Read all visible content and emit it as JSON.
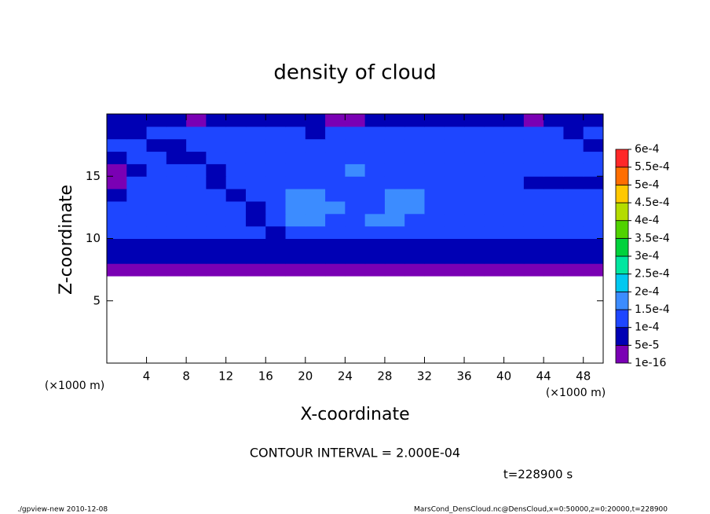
{
  "chart_data": {
    "type": "contour",
    "title": "density of cloud",
    "x_label": "X-coordinate",
    "y_label": "Z-coordinate",
    "x_unit": "(×1000 m)",
    "x_unit2": "(×1000 m)",
    "contour_interval": "CONTOUR INTERVAL = 2.000E-04",
    "time": "t=228900 s",
    "footer_left": "./gpview-new  2010-12-08",
    "footer_right": "MarsCond_DensCloud.nc@DensCloud,x=0:50000,z=0:20000,t=228900",
    "xlim": [
      0,
      50
    ],
    "ylim": [
      0,
      20
    ],
    "xticks": [
      4,
      8,
      12,
      16,
      20,
      24,
      28,
      32,
      36,
      40,
      44,
      48
    ],
    "yticks": [
      5,
      10,
      15
    ],
    "x": [
      1,
      3,
      5,
      7,
      9,
      11,
      13,
      15,
      17,
      19,
      21,
      23,
      25,
      27,
      29,
      31,
      33,
      35,
      37,
      39,
      41,
      43,
      45,
      47,
      49
    ],
    "y": [
      7.5,
      8.5,
      9.5,
      10.5,
      11.5,
      12.5,
      13.5,
      14.5,
      15.5,
      16.5,
      17.5,
      18.5,
      19.5
    ],
    "z": [
      [
        3e-05,
        3e-05,
        3e-05,
        3e-05,
        3e-05,
        3e-05,
        3e-05,
        3e-05,
        3e-05,
        3e-05,
        3e-05,
        3e-05,
        3e-05,
        3e-05,
        3e-05,
        3e-05,
        3e-05,
        3e-05,
        3e-05,
        3e-05,
        3e-05,
        3e-05,
        3e-05,
        3e-05,
        3e-05
      ],
      [
        7e-05,
        7e-05,
        7e-05,
        7e-05,
        7e-05,
        7e-05,
        7e-05,
        7e-05,
        7e-05,
        7e-05,
        7e-05,
        7e-05,
        7e-05,
        7e-05,
        7e-05,
        7e-05,
        7e-05,
        7e-05,
        7e-05,
        7e-05,
        7e-05,
        7e-05,
        7e-05,
        7e-05,
        7e-05
      ],
      [
        8e-05,
        8e-05,
        8e-05,
        8e-05,
        8e-05,
        8e-05,
        8e-05,
        8e-05,
        8e-05,
        8e-05,
        8e-05,
        8e-05,
        8e-05,
        8e-05,
        8e-05,
        8e-05,
        8e-05,
        8e-05,
        8e-05,
        8e-05,
        8e-05,
        8e-05,
        8e-05,
        8e-05,
        8e-05
      ],
      [
        0.00012,
        0.00012,
        0.00012,
        0.00012,
        0.00012,
        0.00012,
        0.00012,
        0.00012,
        8e-05,
        0.00012,
        0.00012,
        0.00012,
        0.00012,
        0.00012,
        0.00012,
        0.00012,
        0.00012,
        0.00012,
        0.00012,
        0.00012,
        0.00012,
        0.00012,
        0.00012,
        0.00012,
        0.00012
      ],
      [
        0.00012,
        0.00012,
        0.00012,
        0.00012,
        0.00012,
        0.00012,
        0.00012,
        8e-05,
        0.00012,
        0.00016,
        0.00016,
        0.00012,
        0.00012,
        0.00016,
        0.00016,
        0.00012,
        0.00012,
        0.00012,
        0.00012,
        0.00012,
        0.00012,
        0.00012,
        0.00012,
        0.00012,
        0.00012
      ],
      [
        0.00012,
        0.00012,
        0.00012,
        0.00012,
        0.00012,
        0.00012,
        0.00012,
        8e-05,
        0.00012,
        0.00016,
        0.00016,
        0.00016,
        0.00012,
        0.00012,
        0.00016,
        0.00016,
        0.00012,
        0.00012,
        0.00012,
        0.00012,
        0.00012,
        0.00012,
        0.00012,
        0.00012,
        0.00012
      ],
      [
        8e-05,
        0.00012,
        0.00012,
        0.00012,
        0.00012,
        0.00012,
        8e-05,
        0.00012,
        0.00012,
        0.00016,
        0.00016,
        0.00012,
        0.00012,
        0.00012,
        0.00016,
        0.00016,
        0.00012,
        0.00012,
        0.00012,
        0.00012,
        0.00012,
        0.00012,
        0.00012,
        0.00012,
        0.00012
      ],
      [
        4e-05,
        0.00012,
        0.00012,
        0.00012,
        0.00012,
        8e-05,
        0.00012,
        0.00012,
        0.00012,
        0.00012,
        0.00012,
        0.00012,
        0.00012,
        0.00012,
        0.00012,
        0.00012,
        0.00012,
        0.00012,
        0.00012,
        0.00012,
        0.00012,
        8e-05,
        8e-05,
        8e-05,
        8e-05
      ],
      [
        4e-05,
        8e-05,
        0.00012,
        0.00012,
        0.00012,
        8e-05,
        0.00012,
        0.00012,
        0.00012,
        0.00012,
        0.00012,
        0.00012,
        0.00016,
        0.00012,
        0.00012,
        0.00012,
        0.00012,
        0.00012,
        0.00012,
        0.00012,
        0.00012,
        0.00012,
        0.00012,
        0.00012,
        0.00012
      ],
      [
        8e-05,
        0.00012,
        0.00012,
        8e-05,
        8e-05,
        0.00012,
        0.00012,
        0.00012,
        0.00012,
        0.00012,
        0.00012,
        0.00012,
        0.00012,
        0.00012,
        0.00012,
        0.00012,
        0.00012,
        0.00012,
        0.00012,
        0.00012,
        0.00012,
        0.00012,
        0.00012,
        0.00012,
        0.00012
      ],
      [
        0.00012,
        0.00012,
        8e-05,
        8e-05,
        0.00012,
        0.00012,
        0.00012,
        0.00012,
        0.00012,
        0.00012,
        0.00012,
        0.00012,
        0.00012,
        0.00012,
        0.00012,
        0.00012,
        0.00012,
        0.00012,
        0.00012,
        0.00012,
        0.00012,
        0.00012,
        0.00012,
        0.00012,
        8e-05
      ],
      [
        8e-05,
        8e-05,
        0.00012,
        0.00012,
        0.00012,
        0.00012,
        0.00012,
        0.00012,
        0.00012,
        0.00012,
        8e-05,
        0.00012,
        0.00012,
        0.00012,
        0.00012,
        0.00012,
        0.00012,
        0.00012,
        0.00012,
        0.00012,
        0.00012,
        0.00012,
        0.00012,
        8e-05,
        0.00012
      ],
      [
        6e-05,
        6e-05,
        6e-05,
        6e-05,
        4e-05,
        6e-05,
        6e-05,
        6e-05,
        6e-05,
        6e-05,
        6e-05,
        4e-05,
        4e-05,
        6e-05,
        6e-05,
        6e-05,
        6e-05,
        6e-05,
        6e-05,
        6e-05,
        6e-05,
        4e-05,
        6e-05,
        6e-05,
        6e-05
      ]
    ],
    "levels": [
      {
        "value": 1e-16,
        "label": "1e-16"
      },
      {
        "value": 5e-05,
        "label": "5e-5"
      },
      {
        "value": 0.0001,
        "label": "1e-4"
      },
      {
        "value": 0.00015,
        "label": "1.5e-4"
      },
      {
        "value": 0.0002,
        "label": "2e-4"
      },
      {
        "value": 0.00025,
        "label": "2.5e-4"
      },
      {
        "value": 0.0003,
        "label": "3e-4"
      },
      {
        "value": 0.00035,
        "label": "3.5e-4"
      },
      {
        "value": 0.0004,
        "label": "4e-4"
      },
      {
        "value": 0.00045,
        "label": "4.5e-4"
      },
      {
        "value": 0.0005,
        "label": "5e-4"
      },
      {
        "value": 0.00055,
        "label": "5.5e-4"
      },
      {
        "value": 0.0006,
        "label": "6e-4"
      }
    ],
    "colors": [
      "#7a00b4",
      "#0000b4",
      "#1e46ff",
      "#3c8cff",
      "#00c8f0",
      "#00e6a0",
      "#00d23c",
      "#50d200",
      "#b4dc00",
      "#ffc800",
      "#ff6e00",
      "#ff2828"
    ]
  }
}
